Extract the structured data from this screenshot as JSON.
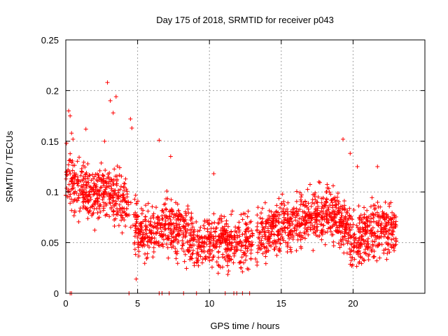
{
  "chart_data": {
    "type": "scatter",
    "title": "Day 175 of 2018, SRMTID for receiver p043",
    "xlabel": "GPS time / hours",
    "ylabel": "SRMTID / TECUs",
    "xlim": [
      0,
      25
    ],
    "ylim": [
      0,
      0.25
    ],
    "x_ticks": [
      0,
      5,
      10,
      15,
      20
    ],
    "y_ticks": [
      0,
      0.05,
      0.1,
      0.15,
      0.2,
      0.25
    ],
    "x_tick_labels": [
      "0",
      "5",
      "10",
      "15",
      "20"
    ],
    "y_tick_labels": [
      "0",
      "0.05",
      "0.1",
      "0.15",
      "0.2",
      "0.25"
    ],
    "grid": true,
    "marker": "+",
    "marker_color": "#ff0000",
    "series": [
      {
        "name": "SRMTID p043",
        "trend_x": [
          0,
          1,
          2,
          3,
          4,
          5,
          6,
          7,
          8,
          9,
          10,
          11,
          12,
          13,
          14,
          15,
          16,
          17,
          18,
          19,
          20,
          21,
          22,
          23
        ],
        "trend_y": [
          0.11,
          0.1,
          0.1,
          0.1,
          0.09,
          0.06,
          0.06,
          0.07,
          0.06,
          0.05,
          0.05,
          0.05,
          0.05,
          0.055,
          0.06,
          0.065,
          0.07,
          0.075,
          0.08,
          0.075,
          0.05,
          0.06,
          0.065,
          0.06
        ],
        "spread": 0.028,
        "x": [
          0.05,
          0.2,
          0.4,
          0.3,
          0.5,
          1.4,
          2.9,
          3.1,
          3.3,
          3.5,
          2.7,
          4.5,
          4.6,
          6.5,
          7.3,
          10.3,
          19.3,
          20.3,
          21.7,
          19.8,
          4.9,
          0.3,
          0.4,
          4.4,
          6.5,
          6.7,
          7.2,
          8.2,
          9.1,
          11.1,
          11.7,
          11.9,
          12.3,
          12.8
        ],
        "y": [
          0.148,
          0.18,
          0.158,
          0.175,
          0.152,
          0.162,
          0.208,
          0.19,
          0.178,
          0.194,
          0.15,
          0.172,
          0.163,
          0.151,
          0.135,
          0.118,
          0.152,
          0.125,
          0.125,
          0.138,
          0.014,
          0,
          0,
          0,
          0,
          0,
          0,
          0,
          0,
          0,
          0,
          0,
          0,
          0
        ]
      }
    ]
  }
}
